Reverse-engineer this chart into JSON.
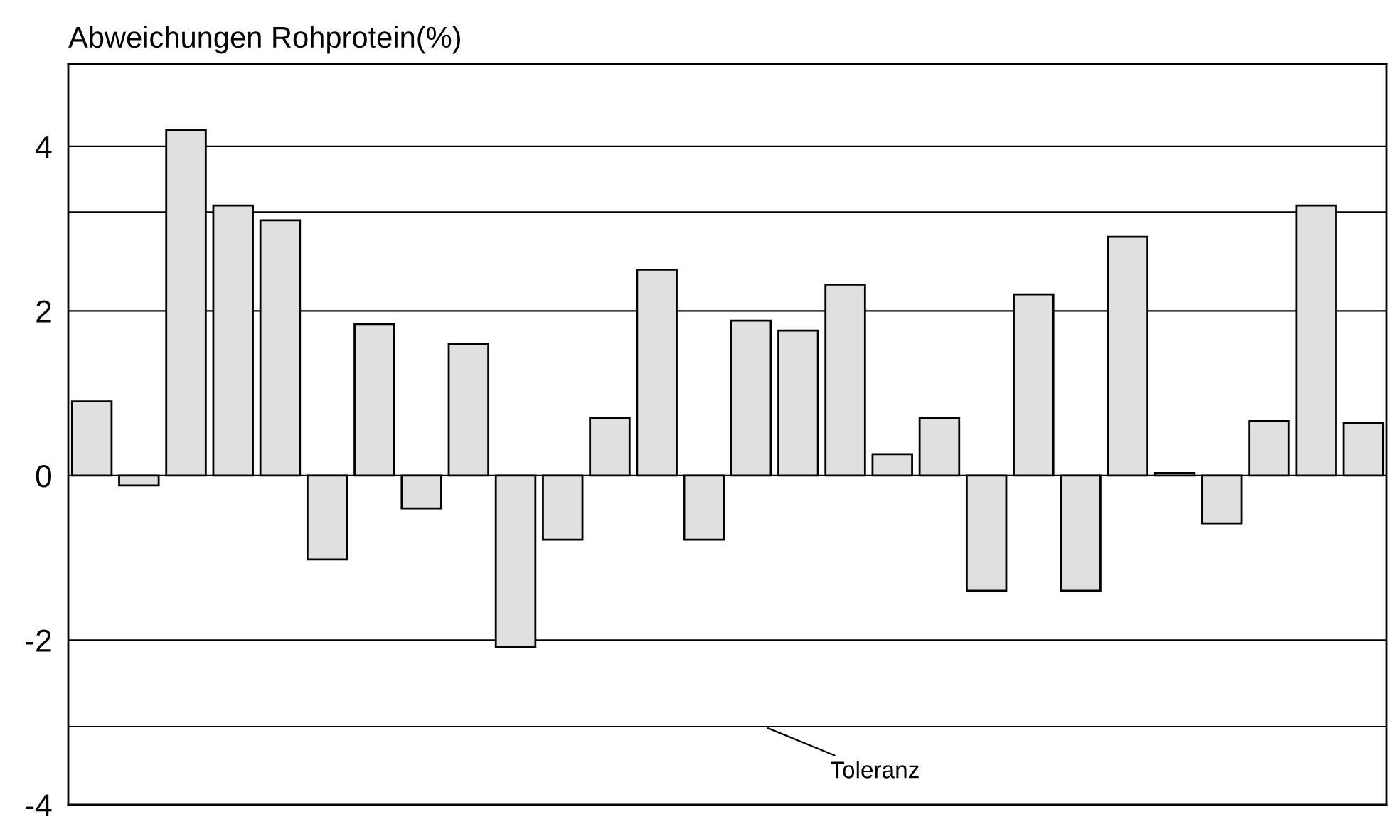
{
  "chart_data": {
    "type": "bar",
    "title": "Abweichungen Rohprotein(%)",
    "categories": [
      null,
      null,
      null,
      null,
      null,
      null,
      null,
      null,
      null,
      null,
      null,
      null,
      null,
      null,
      null,
      null,
      null,
      null,
      null,
      null,
      null,
      null,
      null,
      null,
      null,
      null,
      null,
      null
    ],
    "values": [
      0.9,
      -0.12,
      4.2,
      3.28,
      3.1,
      -1.02,
      1.84,
      -0.4,
      1.6,
      -2.08,
      -0.78,
      0.7,
      2.5,
      -0.78,
      1.88,
      1.76,
      2.32,
      0.26,
      0.7,
      -1.4,
      2.2,
      -1.4,
      2.9,
      0.03,
      -0.58,
      0.66,
      3.28,
      0.64
    ],
    "color": "#e0e0e0",
    "ylim": [
      -4,
      5
    ],
    "yticks": [
      -4,
      -2,
      0,
      2,
      4
    ],
    "grid": "y",
    "tick_labels": "y",
    "ref_lines": [
      {
        "axis": "y",
        "value": 3.2,
        "color": "#000000"
      },
      {
        "axis": "y",
        "value": -3.05,
        "label": "Toleranz",
        "color": "#000000"
      }
    ]
  }
}
